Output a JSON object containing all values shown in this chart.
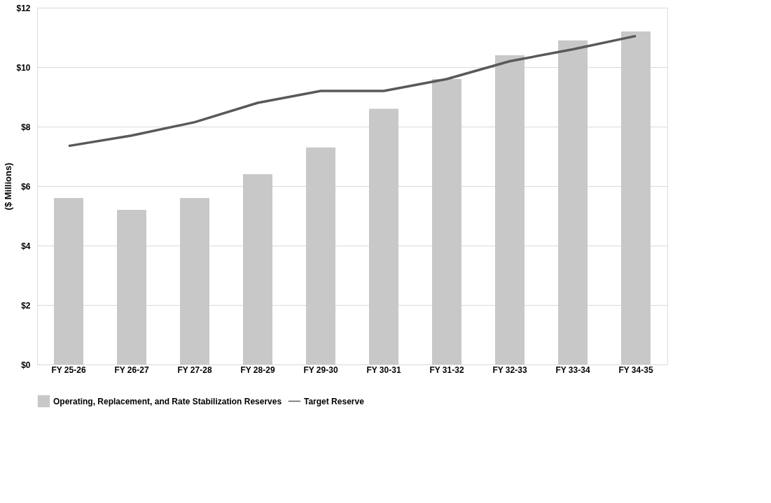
{
  "chart_data": {
    "type": "bar",
    "ylabel": "($ Millions)",
    "categories": [
      "FY 25-26",
      "FY 26-27",
      "FY 27-28",
      "FY 28-29",
      "FY 29-30",
      "FY 30-31",
      "FY 31-32",
      "FY 32-33",
      "FY 33-34",
      "FY 34-35"
    ],
    "series": [
      {
        "name": "Operating, Replacement, and Rate Stabilization Reserves",
        "color": "#c8c8c8",
        "values": [
          5.6,
          5.2,
          5.6,
          6.4,
          7.3,
          8.6,
          9.6,
          10.4,
          10.9,
          11.2
        ]
      },
      {
        "name": "Target Reserve",
        "type": "line",
        "color": "#595959",
        "values": [
          7.35,
          7.7,
          8.15,
          8.8,
          9.2,
          9.2,
          9.6,
          10.2,
          10.6,
          11.05
        ]
      }
    ],
    "ylim": [
      0,
      12
    ],
    "yticks": [
      {
        "value": 0,
        "label": "$0"
      },
      {
        "value": 2,
        "label": "$2"
      },
      {
        "value": 4,
        "label": "$4"
      },
      {
        "value": 6,
        "label": "$6"
      },
      {
        "value": 8,
        "label": "$8"
      },
      {
        "value": 10,
        "label": "$10"
      },
      {
        "value": 12,
        "label": "$12"
      }
    ],
    "grid": "y",
    "legend": "bottom",
    "marker": "none",
    "line_style": "solid"
  }
}
